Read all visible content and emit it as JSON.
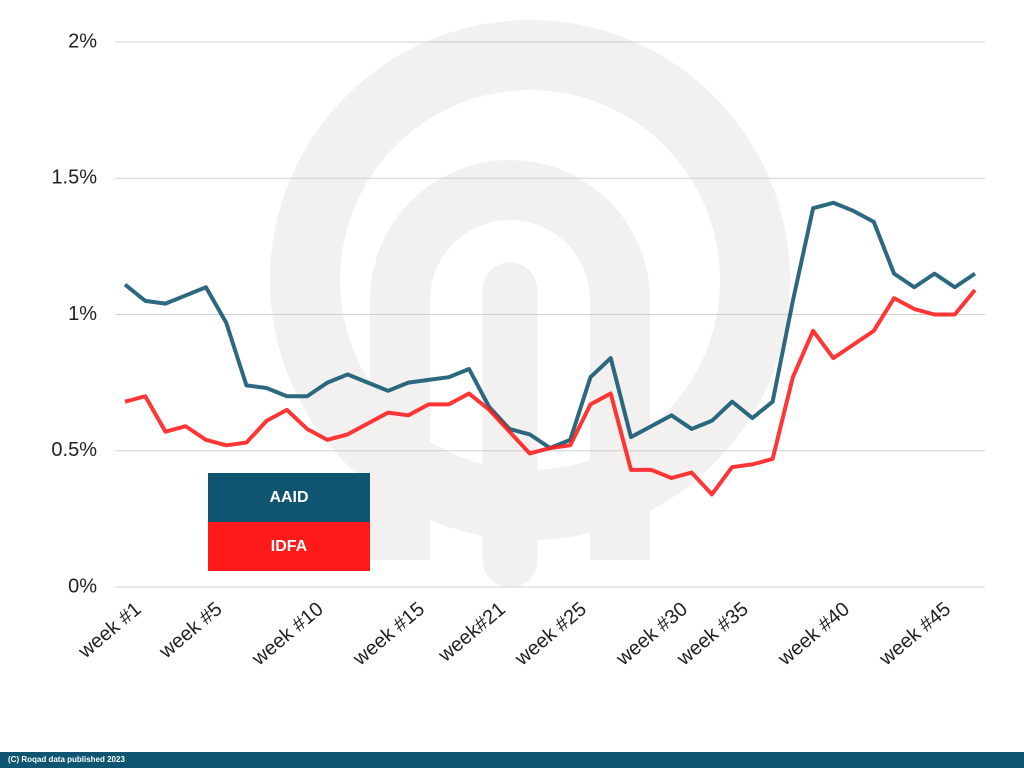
{
  "chart_data": {
    "type": "line",
    "categories": [
      "week #1",
      null,
      null,
      null,
      "week #5",
      null,
      null,
      null,
      null,
      "week #10",
      null,
      null,
      null,
      null,
      "week #15",
      null,
      null,
      null,
      "week#21",
      null,
      null,
      null,
      "week #25",
      null,
      null,
      null,
      null,
      "week #30",
      null,
      null,
      "week #35",
      null,
      null,
      null,
      null,
      "week #40",
      null,
      null,
      null,
      null,
      "week #45",
      null,
      null
    ],
    "series": [
      {
        "name": "AAID",
        "color": "#0f5470",
        "values": [
          1.11,
          1.05,
          1.04,
          1.07,
          1.1,
          0.97,
          0.74,
          0.73,
          0.7,
          0.7,
          0.75,
          0.78,
          0.75,
          0.72,
          0.75,
          0.76,
          0.77,
          0.8,
          0.66,
          0.58,
          0.56,
          0.51,
          0.54,
          0.77,
          0.84,
          0.55,
          0.59,
          0.63,
          0.58,
          0.61,
          0.68,
          0.62,
          0.68,
          1.05,
          1.39,
          1.41,
          1.38,
          1.34,
          1.15,
          1.1,
          1.15,
          1.1,
          1.15
        ]
      },
      {
        "name": "IDFA",
        "color": "#ff1a1a",
        "values": [
          0.68,
          0.7,
          0.57,
          0.59,
          0.54,
          0.52,
          0.53,
          0.61,
          0.65,
          0.58,
          0.54,
          0.56,
          0.6,
          0.64,
          0.63,
          0.67,
          0.67,
          0.71,
          0.65,
          0.57,
          0.49,
          0.51,
          0.52,
          0.67,
          0.71,
          0.43,
          0.43,
          0.4,
          0.42,
          0.34,
          0.44,
          0.45,
          0.47,
          0.77,
          0.94,
          0.84,
          0.89,
          0.94,
          1.06,
          1.02,
          1.0,
          1.0,
          1.09
        ]
      }
    ],
    "ylim": [
      0,
      2
    ],
    "yticks": [
      {
        "value": 0,
        "label": "0%"
      },
      {
        "value": 0.5,
        "label": "0.5%"
      },
      {
        "value": 1,
        "label": "1%"
      },
      {
        "value": 1.5,
        "label": "1.5%"
      },
      {
        "value": 2,
        "label": "2%"
      }
    ],
    "grid": true
  },
  "footer": "(C) Roqad data published 2023"
}
